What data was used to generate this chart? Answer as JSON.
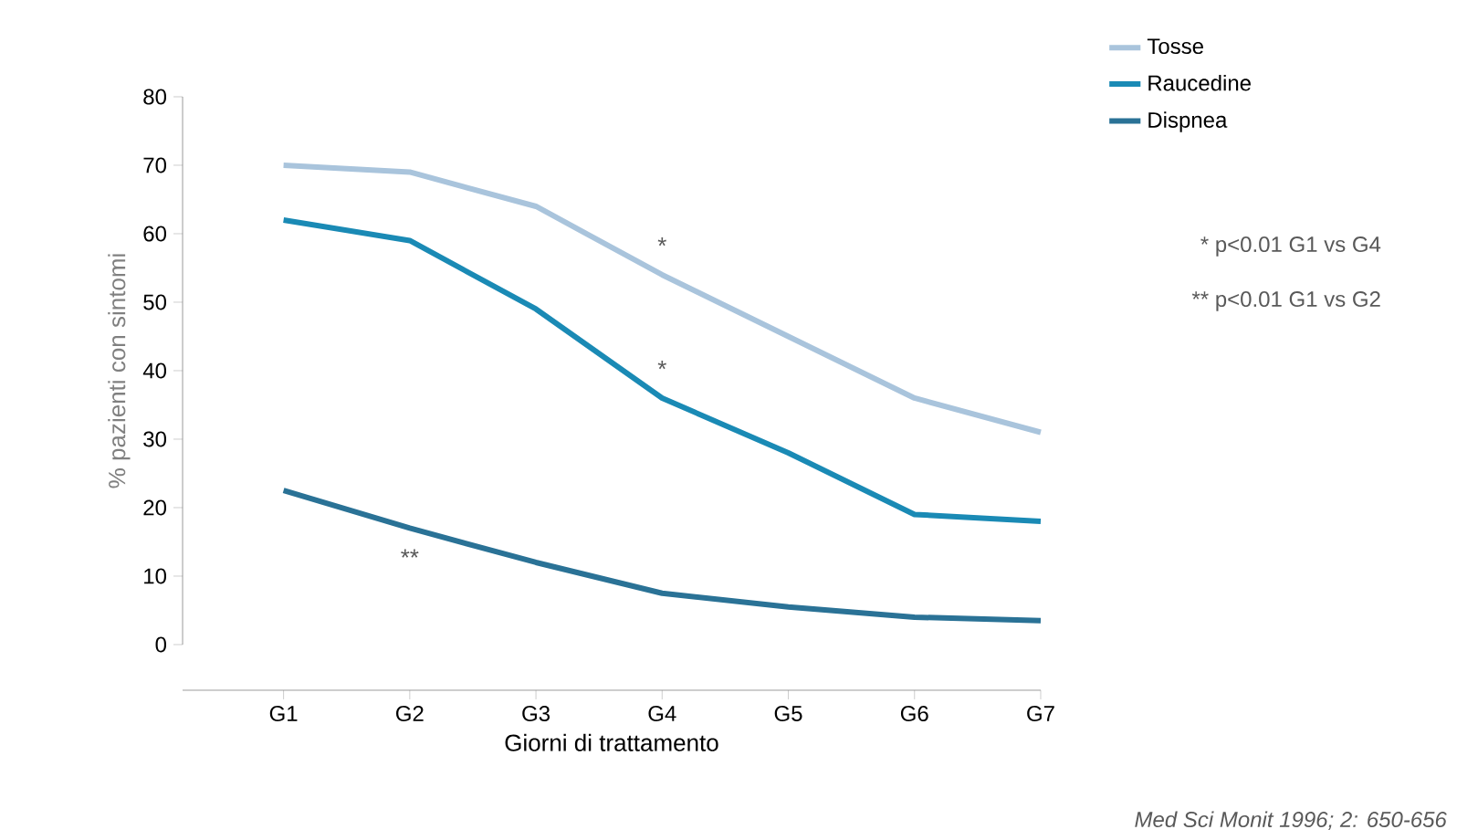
{
  "chart_data": {
    "type": "line",
    "xlabel": "Giorni di trattamento",
    "ylabel": "% pazienti con sintomi",
    "categories": [
      "G1",
      "G2",
      "G3",
      "G4",
      "G5",
      "G6",
      "G7"
    ],
    "series": [
      {
        "name": "Tosse",
        "color": "#a9c4dc",
        "values": [
          70,
          69,
          64,
          54,
          45,
          36,
          31
        ]
      },
      {
        "name": "Raucedine",
        "color": "#1a8ab5",
        "values": [
          62,
          59,
          49,
          36,
          28,
          19,
          18
        ]
      },
      {
        "name": "Dispnea",
        "color": "#2a7296",
        "values": [
          22.5,
          17,
          12,
          7.5,
          5.5,
          4,
          3.5
        ]
      }
    ],
    "ylim": [
      0,
      80
    ],
    "yticks": [
      0,
      10,
      20,
      30,
      40,
      50,
      60,
      70,
      80
    ],
    "legend": "top right",
    "grid": false,
    "marker": "none",
    "line_style": "solid",
    "annotations": [
      {
        "text": "*",
        "x": "G4",
        "y": 54
      },
      {
        "text": "*",
        "x": "G4",
        "y": 36
      },
      {
        "text": "**",
        "x": "G2",
        "y": 17
      },
      "* p<0.01 G1 vs G4",
      "** p<0.01 G1 vs G2",
      "Med Sci Monit 1996; 2: 650-656"
    ]
  }
}
